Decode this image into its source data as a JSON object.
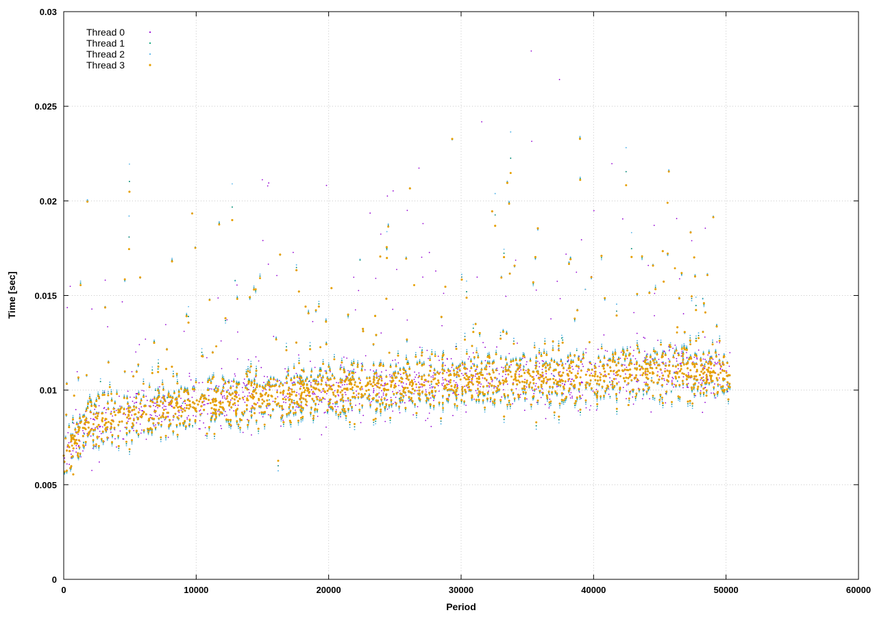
{
  "chart_data": {
    "type": "scatter",
    "title": "",
    "xlabel": "Period",
    "ylabel": "Time [sec]",
    "xlim": [
      0,
      60000
    ],
    "ylim": [
      0,
      0.03
    ],
    "x_ticks": [
      0,
      10000,
      20000,
      30000,
      40000,
      50000,
      60000
    ],
    "x_tick_labels": [
      "0",
      "10000",
      "20000",
      "30000",
      "40000",
      "50000",
      "60000"
    ],
    "y_ticks": [
      0,
      0.005,
      0.01,
      0.015,
      0.02,
      0.025,
      0.03
    ],
    "y_tick_labels": [
      "0",
      "0.005",
      "0.01",
      "0.015",
      "0.02",
      "0.025",
      "0.03"
    ],
    "grid": true,
    "legend_position": "top-left",
    "x_max_observed": 50300,
    "series": [
      {
        "name": "Thread 0",
        "color": "#9400d3",
        "marker": "dot",
        "trend": [
          [
            0,
            0.0065
          ],
          [
            2000,
            0.0083
          ],
          [
            10000,
            0.0092
          ],
          [
            20000,
            0.01
          ],
          [
            30000,
            0.0105
          ],
          [
            40000,
            0.0108
          ],
          [
            50300,
            0.011
          ]
        ],
        "typical_spread": 0.0014,
        "outlier_max": 0.028
      },
      {
        "name": "Thread 1",
        "color": "#009e73",
        "marker": "dot",
        "trend": [
          [
            0,
            0.0065
          ],
          [
            2000,
            0.0083
          ],
          [
            10000,
            0.0092
          ],
          [
            20000,
            0.01
          ],
          [
            30000,
            0.0105
          ],
          [
            40000,
            0.0108
          ],
          [
            50300,
            0.011
          ]
        ],
        "typical_spread": 0.0014,
        "outlier_max": 0.028
      },
      {
        "name": "Thread 2",
        "color": "#56b4e9",
        "marker": "dot",
        "trend": [
          [
            0,
            0.0065
          ],
          [
            2000,
            0.0083
          ],
          [
            10000,
            0.0092
          ],
          [
            20000,
            0.01
          ],
          [
            30000,
            0.0105
          ],
          [
            40000,
            0.0108
          ],
          [
            50300,
            0.011
          ]
        ],
        "typical_spread": 0.0015,
        "outlier_max": 0.0295
      },
      {
        "name": "Thread 3",
        "color": "#e69f00",
        "marker": "dot",
        "trend": [
          [
            0,
            0.0065
          ],
          [
            2000,
            0.0083
          ],
          [
            10000,
            0.0092
          ],
          [
            20000,
            0.01
          ],
          [
            30000,
            0.0105
          ],
          [
            40000,
            0.0108
          ],
          [
            50300,
            0.011
          ]
        ],
        "typical_spread": 0.0013,
        "outlier_max": 0.0272
      }
    ]
  }
}
